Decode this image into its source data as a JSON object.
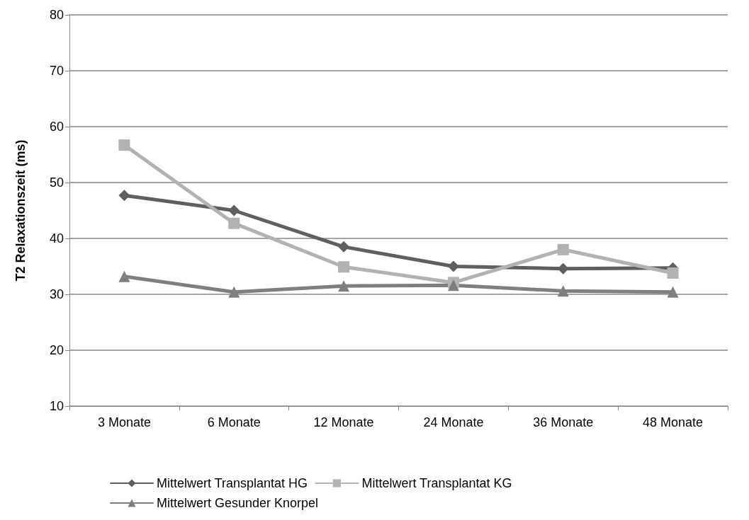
{
  "chart_data": {
    "type": "line",
    "ylabel": "T2 Relaxationszeit (ms)",
    "categories": [
      "3 Monate",
      "6 Monate",
      "12 Monate",
      "24 Monate",
      "36 Monate",
      "48 Monate"
    ],
    "series": [
      {
        "name": "Mittelwert Transplantat HG",
        "color": "#5f5f5f",
        "marker": "diamond",
        "values": [
          47.7,
          45.0,
          38.5,
          35.0,
          34.6,
          34.7
        ]
      },
      {
        "name": "Mittelwert Transplantat KG",
        "color": "#b2b2b2",
        "marker": "square",
        "values": [
          56.7,
          42.7,
          34.9,
          32.1,
          38.0,
          33.8
        ]
      },
      {
        "name": "Mittelwert Gesunder Knorpel",
        "color": "#7f7f7f",
        "marker": "triangle",
        "values": [
          33.2,
          30.4,
          31.5,
          31.6,
          30.6,
          30.4
        ]
      }
    ],
    "ylim": [
      10,
      80
    ],
    "yticks": [
      10,
      20,
      30,
      40,
      50,
      60,
      70,
      80
    ],
    "grid": "y",
    "legend": "bottom",
    "line_style": "solid"
  }
}
